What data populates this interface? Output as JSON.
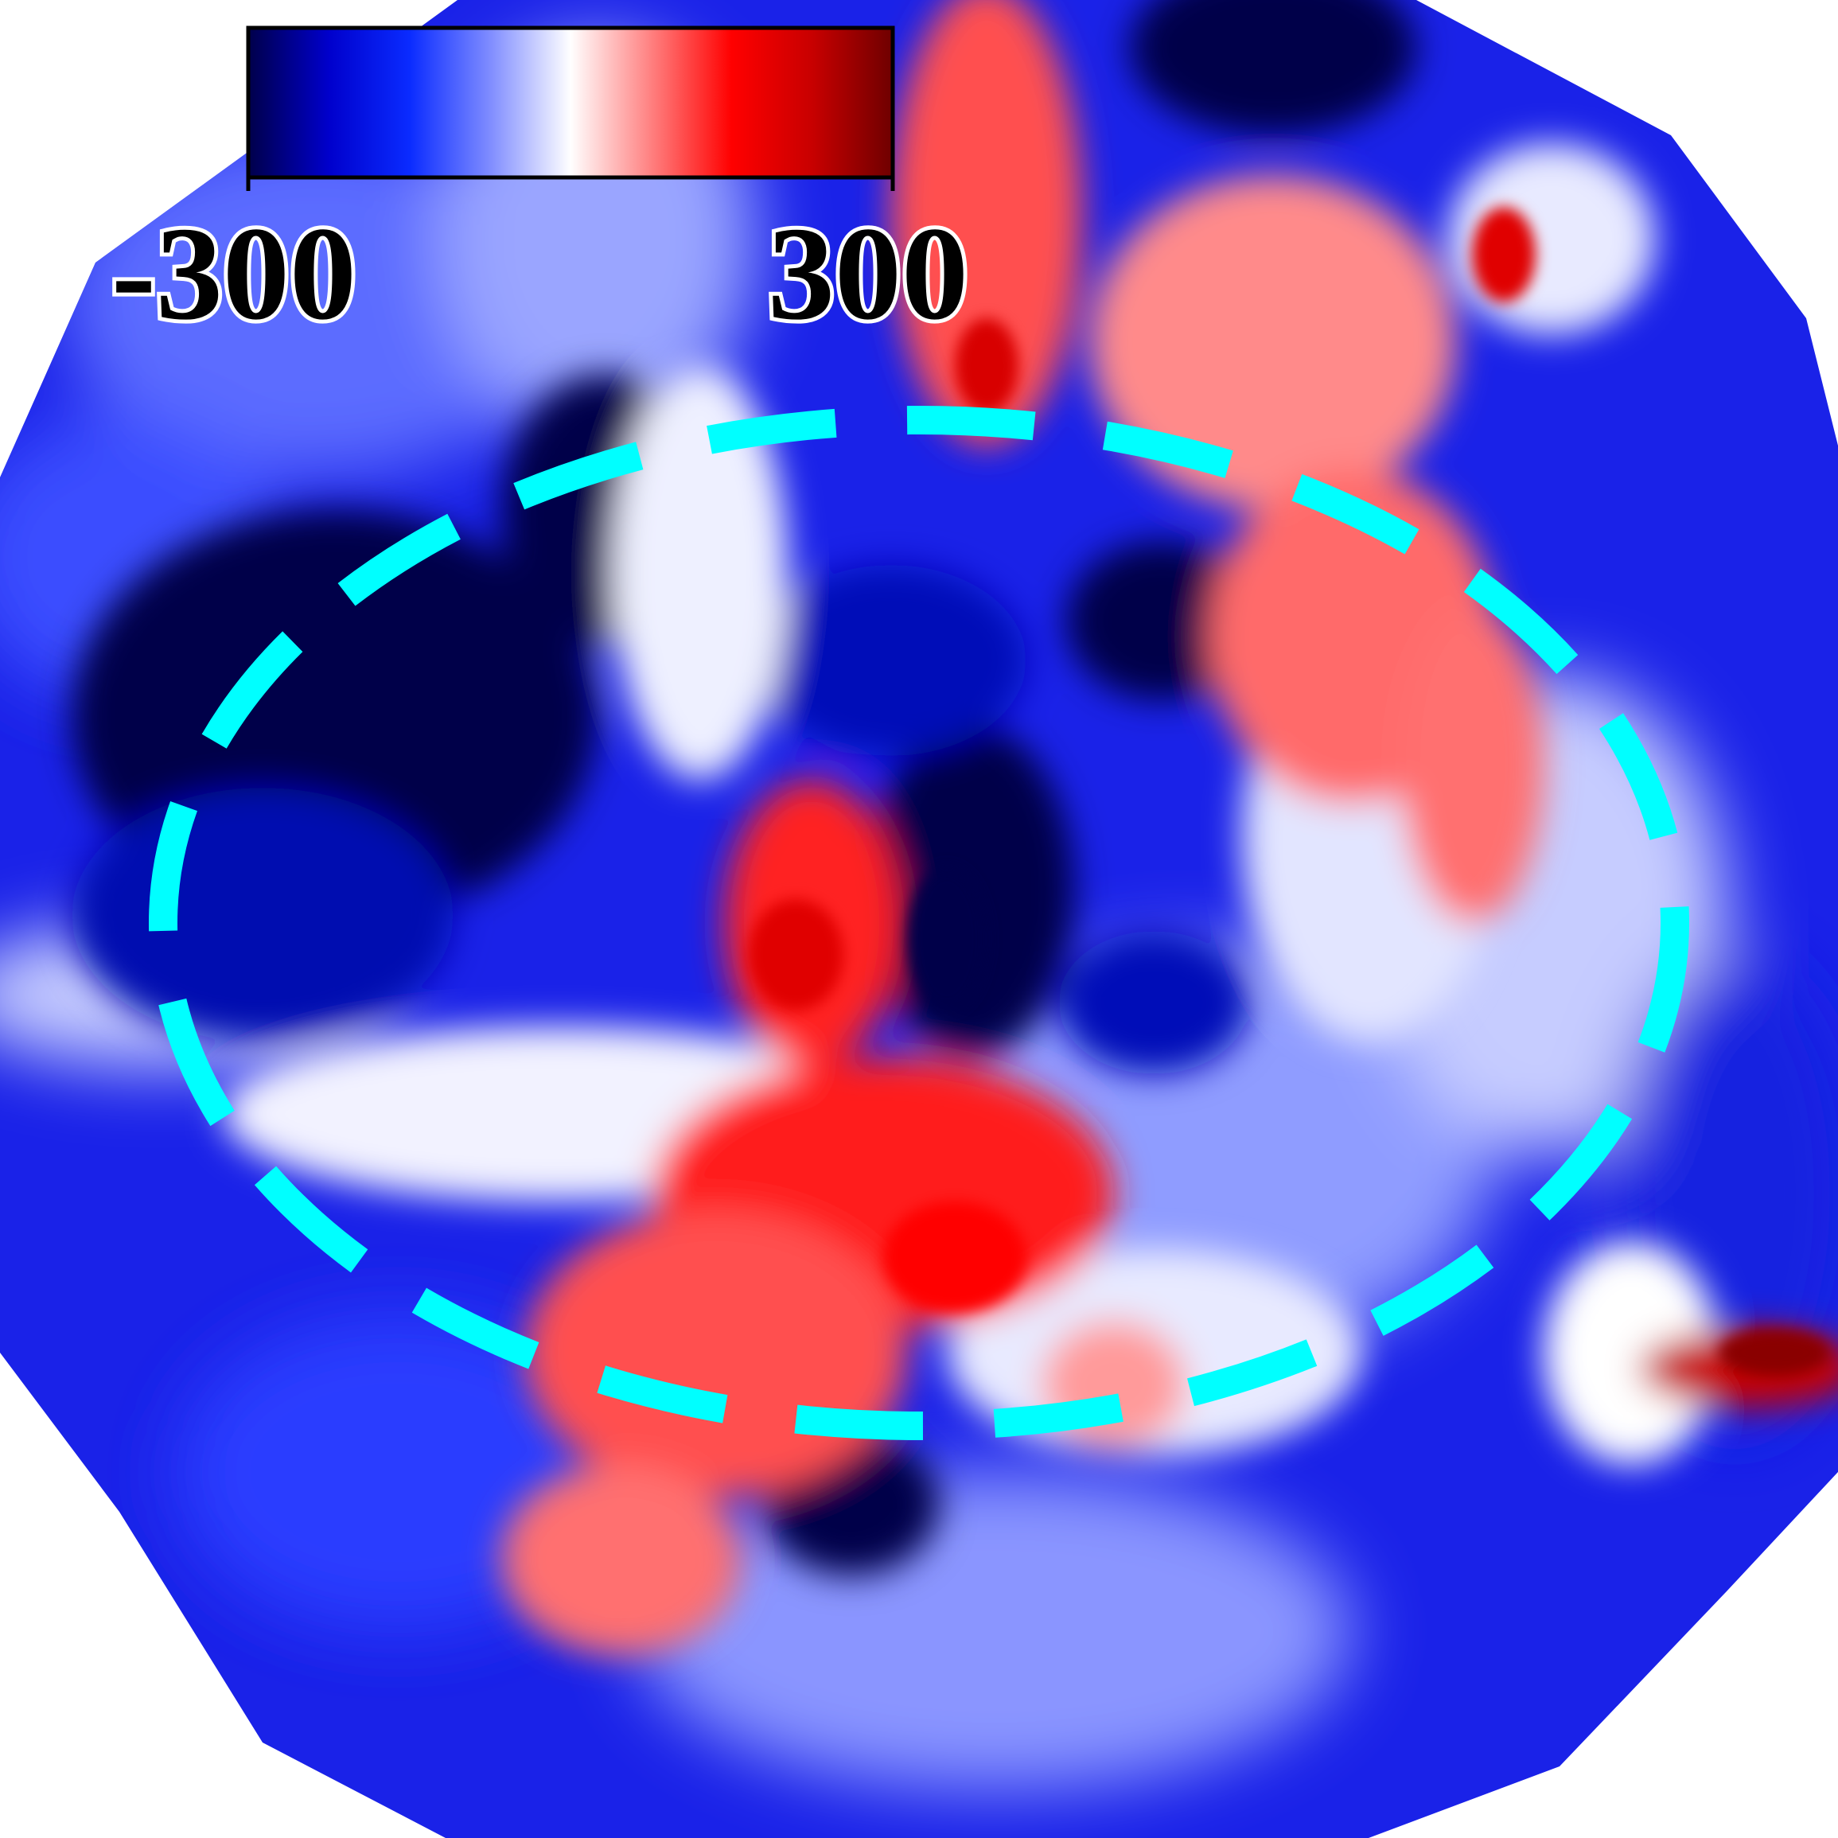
{
  "colorbar": {
    "min_label": "-300",
    "max_label": "300",
    "min_value": -300,
    "max_value": 300,
    "stops": [
      "#00004a",
      "#0000cc",
      "#0a2bff",
      "#7f8cff",
      "#ffffff",
      "#ff8080",
      "#ff0000",
      "#c80000",
      "#6e0000"
    ]
  },
  "colors": {
    "ellipse_outline": "#00ffff",
    "background": "#ffffff"
  }
}
